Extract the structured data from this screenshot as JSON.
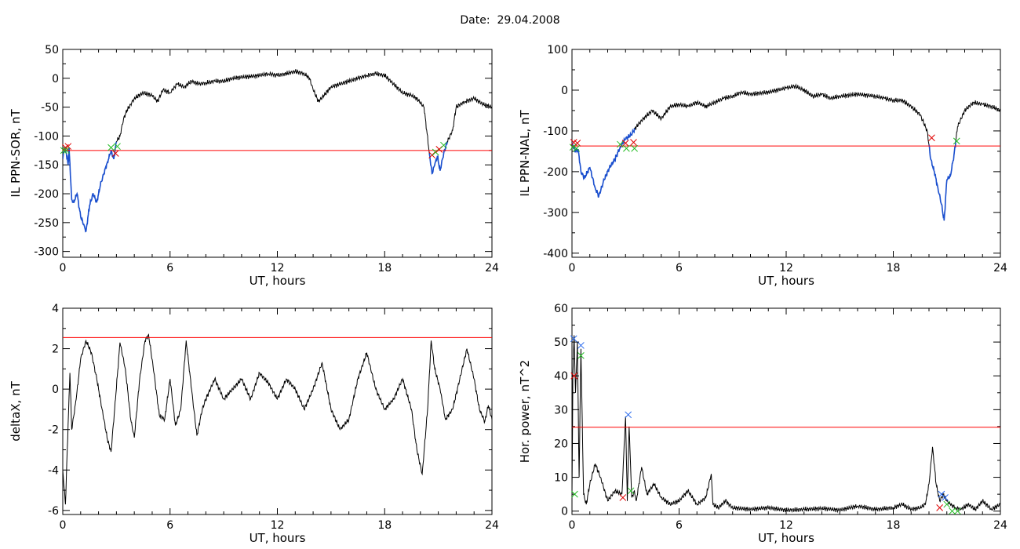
{
  "header": {
    "date_label": "Date:",
    "date_value": "29.04.2008"
  },
  "colors": {
    "trace": "#000000",
    "highlight": "#1a4fcf",
    "threshold": "#ff0000",
    "marker_red": "#e00000",
    "marker_green": "#22bb22",
    "marker_blue": "#2266ee"
  },
  "chart_data": [
    {
      "id": "ppn-sor",
      "type": "line",
      "title": "",
      "xlabel": "UT, hours",
      "ylabel": "IL PPN-SOR, nT",
      "xlim": [
        0,
        24
      ],
      "ylim": [
        -310,
        50
      ],
      "xticks": [
        0,
        6,
        12,
        18,
        24
      ],
      "yticks": [
        50,
        0,
        -50,
        -100,
        -150,
        -200,
        -250,
        -300
      ],
      "threshold": -125,
      "x": [
        0,
        0.1,
        0.2,
        0.3,
        0.35,
        0.5,
        0.6,
        0.8,
        1.0,
        1.2,
        1.3,
        1.5,
        1.7,
        1.9,
        2.1,
        2.3,
        2.5,
        2.7,
        2.85,
        3.0,
        3.2,
        3.4,
        3.6,
        3.8,
        4.0,
        4.5,
        5.0,
        5.3,
        5.6,
        6.0,
        6.4,
        6.8,
        7.2,
        7.6,
        8.0,
        8.5,
        9.0,
        9.5,
        10.0,
        10.5,
        11.0,
        11.5,
        12.0,
        12.5,
        13.0,
        13.5,
        13.8,
        14.0,
        14.3,
        14.6,
        15.0,
        15.5,
        16.0,
        16.5,
        17.0,
        17.5,
        18.0,
        18.5,
        19.0,
        19.5,
        19.8,
        20.2,
        20.5,
        20.65,
        20.8,
        20.95,
        21.1,
        21.3,
        21.5,
        21.8,
        22.0,
        22.5,
        23.0,
        23.5,
        24.0
      ],
      "y": [
        -140,
        -120,
        -130,
        -150,
        -120,
        -210,
        -215,
        -200,
        -240,
        -255,
        -265,
        -220,
        -200,
        -215,
        -185,
        -165,
        -145,
        -125,
        -140,
        -110,
        -100,
        -70,
        -55,
        -45,
        -35,
        -25,
        -30,
        -40,
        -20,
        -25,
        -10,
        -15,
        -5,
        -10,
        -8,
        -5,
        -5,
        0,
        2,
        3,
        5,
        8,
        5,
        8,
        12,
        8,
        0,
        -20,
        -40,
        -30,
        -15,
        -10,
        -5,
        0,
        5,
        8,
        5,
        -10,
        -25,
        -30,
        -35,
        -50,
        -130,
        -165,
        -150,
        -135,
        -160,
        -130,
        -110,
        -90,
        -50,
        -40,
        -35,
        -45,
        -50
      ],
      "highlight_ranges": [
        [
          0,
          3.0
        ],
        [
          20.5,
          21.5
        ]
      ],
      "markers": [
        {
          "x": 0.15,
          "y": -120,
          "color": "red"
        },
        {
          "x": 0.3,
          "y": -118,
          "color": "red"
        },
        {
          "x": 0.05,
          "y": -125,
          "color": "green"
        },
        {
          "x": 0.2,
          "y": -125,
          "color": "green"
        },
        {
          "x": 2.7,
          "y": -120,
          "color": "green"
        },
        {
          "x": 2.95,
          "y": -130,
          "color": "red"
        },
        {
          "x": 3.05,
          "y": -118,
          "color": "green"
        },
        {
          "x": 20.65,
          "y": -133,
          "color": "red"
        },
        {
          "x": 20.85,
          "y": -128,
          "color": "green"
        },
        {
          "x": 21.05,
          "y": -123,
          "color": "red"
        },
        {
          "x": 21.3,
          "y": -116,
          "color": "green"
        }
      ]
    },
    {
      "id": "ppn-nal",
      "type": "line",
      "title": "",
      "xlabel": "UT, hours",
      "ylabel": "IL PPN-NAL, nT",
      "xlim": [
        0,
        24
      ],
      "ylim": [
        -410,
        100
      ],
      "xticks": [
        0,
        6,
        12,
        18,
        24
      ],
      "yticks": [
        100,
        0,
        -100,
        -200,
        -300,
        -400
      ],
      "threshold": -137,
      "x": [
        0,
        0.1,
        0.2,
        0.35,
        0.5,
        0.7,
        1.0,
        1.3,
        1.5,
        1.8,
        2.1,
        2.4,
        2.7,
        3.0,
        3.3,
        3.6,
        4.0,
        4.5,
        5.0,
        5.5,
        6.0,
        6.5,
        7.0,
        7.5,
        8.0,
        8.5,
        9.0,
        9.5,
        10.0,
        11.0,
        12.0,
        12.5,
        13.0,
        13.5,
        14.0,
        14.5,
        15.0,
        16.0,
        17.0,
        17.5,
        18.0,
        18.5,
        19.0,
        19.5,
        19.9,
        20.1,
        20.3,
        20.5,
        20.7,
        20.85,
        21.0,
        21.2,
        21.4,
        21.6,
        22.0,
        22.5,
        23.0,
        23.5,
        24.0
      ],
      "y": [
        -130,
        -140,
        -150,
        -145,
        -200,
        -215,
        -190,
        -240,
        -260,
        -220,
        -190,
        -170,
        -140,
        -120,
        -110,
        -90,
        -70,
        -50,
        -70,
        -40,
        -35,
        -40,
        -30,
        -40,
        -30,
        -20,
        -15,
        -5,
        -10,
        -5,
        5,
        10,
        0,
        -15,
        -10,
        -20,
        -15,
        -10,
        -15,
        -20,
        -25,
        -25,
        -40,
        -60,
        -100,
        -170,
        -200,
        -240,
        -280,
        -320,
        -220,
        -210,
        -160,
        -90,
        -50,
        -30,
        -35,
        -40,
        -50
      ],
      "highlight_ranges": [
        [
          0,
          3.5
        ],
        [
          20.0,
          21.5
        ]
      ],
      "markers": [
        {
          "x": 0.1,
          "y": -128,
          "color": "red"
        },
        {
          "x": 0.3,
          "y": -130,
          "color": "red"
        },
        {
          "x": 0.05,
          "y": -140,
          "color": "green"
        },
        {
          "x": 0.25,
          "y": -143,
          "color": "green"
        },
        {
          "x": 2.7,
          "y": -133,
          "color": "green"
        },
        {
          "x": 3.0,
          "y": -130,
          "color": "red"
        },
        {
          "x": 3.05,
          "y": -143,
          "color": "green"
        },
        {
          "x": 3.45,
          "y": -128,
          "color": "red"
        },
        {
          "x": 3.5,
          "y": -143,
          "color": "green"
        },
        {
          "x": 20.15,
          "y": -117,
          "color": "red"
        },
        {
          "x": 21.55,
          "y": -125,
          "color": "green"
        }
      ]
    },
    {
      "id": "deltax",
      "type": "line",
      "title": "",
      "xlabel": "UT, hours",
      "ylabel": "deltaX, nT",
      "xlim": [
        0,
        24
      ],
      "ylim": [
        -6.2,
        4
      ],
      "xticks": [
        0,
        6,
        12,
        18,
        24
      ],
      "yticks": [
        4,
        2,
        0,
        -2,
        -4,
        -6
      ],
      "threshold": 2.55,
      "x": [
        0,
        0.15,
        0.25,
        0.4,
        0.5,
        0.75,
        1.0,
        1.3,
        1.6,
        1.9,
        2.2,
        2.5,
        2.7,
        2.9,
        3.2,
        3.5,
        3.8,
        4.0,
        4.3,
        4.6,
        4.8,
        5.1,
        5.4,
        5.7,
        6.0,
        6.3,
        6.6,
        6.9,
        7.2,
        7.5,
        7.8,
        8.0,
        8.5,
        9.0,
        9.5,
        10.0,
        10.5,
        11.0,
        11.5,
        12.0,
        12.5,
        13.0,
        13.5,
        14.0,
        14.5,
        15.0,
        15.5,
        16.0,
        16.5,
        17.0,
        17.5,
        18.0,
        18.5,
        19.0,
        19.5,
        19.8,
        20.1,
        20.4,
        20.6,
        20.8,
        21.1,
        21.4,
        21.8,
        22.2,
        22.6,
        23.0,
        23.3,
        23.6,
        23.8,
        24.0
      ],
      "y": [
        -4,
        -5.7,
        -3.0,
        0.8,
        -2.0,
        -0.5,
        1.5,
        2.4,
        1.8,
        0.5,
        -1.0,
        -2.5,
        -3.1,
        -1.0,
        2.3,
        1.0,
        -1.5,
        -2.4,
        0.5,
        2.4,
        2.7,
        0.8,
        -1.3,
        -1.5,
        0.5,
        -1.8,
        -1.0,
        2.4,
        0.0,
        -2.3,
        -1.0,
        -0.5,
        0.5,
        -0.5,
        0.0,
        0.5,
        -0.5,
        0.8,
        0.3,
        -0.5,
        0.5,
        0.0,
        -1.0,
        0.0,
        1.3,
        -1.0,
        -2.0,
        -1.5,
        0.5,
        1.8,
        0.0,
        -1.0,
        -0.5,
        0.5,
        -1.0,
        -3.0,
        -4.2,
        -1.0,
        2.4,
        1.0,
        0.0,
        -1.5,
        -1.0,
        0.5,
        2.0,
        0.5,
        -1.0,
        -1.6,
        -0.8,
        -1.5
      ],
      "highlight_ranges": [],
      "markers": []
    },
    {
      "id": "hor-power",
      "type": "line",
      "title": "",
      "xlabel": "UT, hours",
      "ylabel": "Hor. power, nT^2",
      "xlim": [
        0,
        24
      ],
      "ylim": [
        -1,
        60
      ],
      "xticks": [
        0,
        6,
        12,
        18,
        24
      ],
      "yticks": [
        60,
        50,
        40,
        30,
        20,
        10,
        0
      ],
      "threshold": 24.8,
      "x": [
        0,
        0.05,
        0.12,
        0.2,
        0.3,
        0.4,
        0.5,
        0.65,
        0.8,
        1.0,
        1.3,
        1.6,
        2.0,
        2.4,
        2.8,
        3.0,
        3.1,
        3.2,
        3.35,
        3.5,
        3.6,
        3.9,
        4.2,
        4.6,
        5.0,
        5.5,
        6.0,
        6.5,
        7.0,
        7.5,
        7.8,
        7.9,
        8.2,
        8.6,
        9.0,
        10.0,
        11.0,
        12.0,
        13.0,
        14.0,
        15.0,
        16.0,
        17.0,
        18.0,
        18.5,
        19.0,
        19.5,
        19.8,
        20.0,
        20.2,
        20.4,
        20.6,
        20.8,
        21.0,
        21.2,
        21.5,
        21.8,
        22.2,
        22.6,
        23.0,
        23.5,
        24.0
      ],
      "y": [
        5,
        40,
        52,
        35,
        50,
        10,
        48,
        5,
        2,
        8,
        14,
        10,
        3,
        6,
        5,
        28,
        3,
        25,
        4,
        6,
        3,
        13,
        5,
        8,
        4,
        2,
        3,
        6,
        2,
        4,
        11,
        2,
        1,
        3,
        1,
        0.5,
        1,
        0.3,
        0.5,
        0.8,
        0.3,
        1.5,
        0.5,
        1,
        2,
        0.5,
        1,
        2,
        8,
        19,
        8,
        3,
        5,
        3,
        2,
        1,
        0.5,
        2,
        0.5,
        3,
        0.5,
        2
      ],
      "highlight_ranges": [],
      "markers": [
        {
          "x": 0.1,
          "y": 51,
          "color": "blue"
        },
        {
          "x": 0.5,
          "y": 49,
          "color": "blue"
        },
        {
          "x": 0.12,
          "y": 40,
          "color": "red"
        },
        {
          "x": 0.5,
          "y": 46,
          "color": "green"
        },
        {
          "x": 0.15,
          "y": 5,
          "color": "green"
        },
        {
          "x": 3.15,
          "y": 28.5,
          "color": "blue"
        },
        {
          "x": 2.85,
          "y": 4,
          "color": "red"
        },
        {
          "x": 3.3,
          "y": 6,
          "color": "green"
        },
        {
          "x": 20.7,
          "y": 5,
          "color": "blue"
        },
        {
          "x": 20.9,
          "y": 4,
          "color": "blue"
        },
        {
          "x": 20.6,
          "y": 1,
          "color": "red"
        },
        {
          "x": 21.0,
          "y": 2,
          "color": "green"
        },
        {
          "x": 21.3,
          "y": 0,
          "color": "green"
        },
        {
          "x": 21.6,
          "y": 0,
          "color": "green"
        }
      ]
    }
  ]
}
